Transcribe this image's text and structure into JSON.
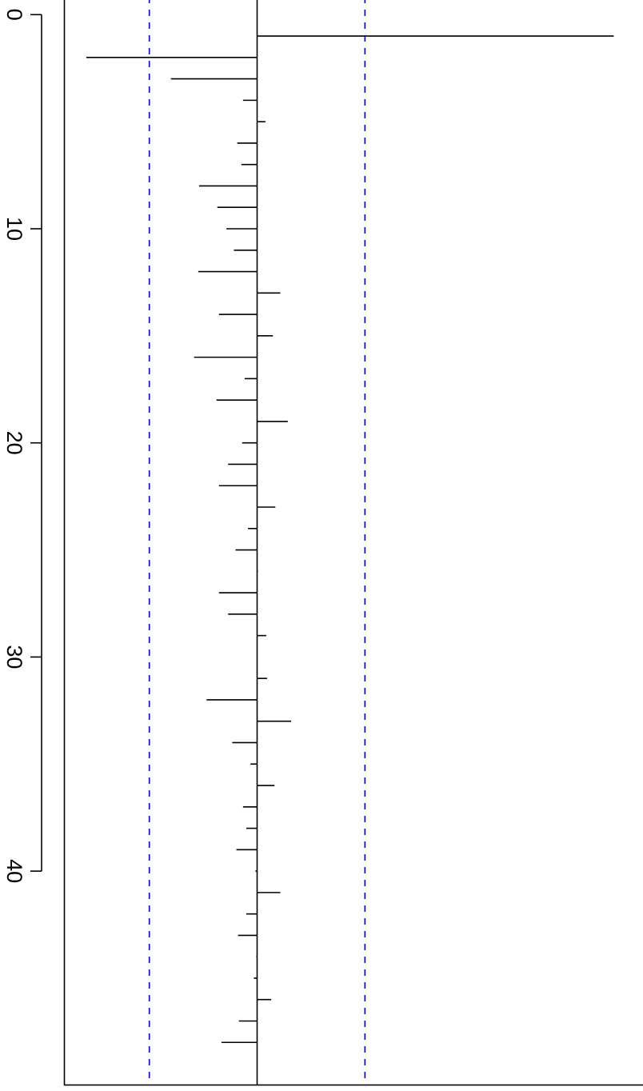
{
  "chart_data": {
    "type": "bar",
    "title": "",
    "xlabel": "",
    "ylabel": "",
    "orientation": "rotated-90-clockwise",
    "lag_axis": {
      "range": [
        -0.5,
        50
      ],
      "ticks": [
        0,
        10,
        20,
        30,
        40
      ],
      "tick_labels": [
        "0",
        "10",
        "20",
        "30",
        "40"
      ]
    },
    "value_axis": {
      "range": [
        -0.22,
        0.47
      ]
    },
    "lags": [
      1,
      2,
      3,
      4,
      5,
      6,
      7,
      8,
      9,
      10,
      11,
      12,
      13,
      14,
      15,
      16,
      17,
      18,
      19,
      20,
      21,
      22,
      23,
      24,
      25,
      26,
      27,
      28,
      29,
      30,
      31,
      32,
      33,
      34,
      35,
      36,
      37,
      38,
      39,
      40,
      41,
      42,
      43,
      44,
      45,
      46,
      47,
      48,
      49
    ],
    "values": [
      0.43,
      -0.206,
      -0.104,
      -0.017,
      0.01,
      -0.024,
      -0.019,
      -0.07,
      -0.048,
      -0.037,
      -0.028,
      -0.071,
      0.028,
      -0.046,
      0.019,
      -0.076,
      -0.015,
      -0.049,
      0.037,
      -0.018,
      -0.035,
      -0.046,
      0.022,
      -0.011,
      -0.026,
      0.001,
      -0.046,
      -0.035,
      0.011,
      0.0,
      0.012,
      -0.061,
      0.041,
      -0.03,
      -0.008,
      0.021,
      -0.017,
      -0.013,
      -0.025,
      -0.002,
      0.028,
      -0.013,
      -0.023,
      -0.001,
      -0.004,
      0.017,
      -0.022,
      -0.043,
      0.0
    ],
    "confidence_bounds": [
      -0.13,
      0.13
    ],
    "zero_line": 0,
    "grid": false,
    "legend": "none",
    "colors": {
      "bars": "#000000",
      "confidence_bounds": "#0000ee",
      "axes": "#000000"
    }
  }
}
